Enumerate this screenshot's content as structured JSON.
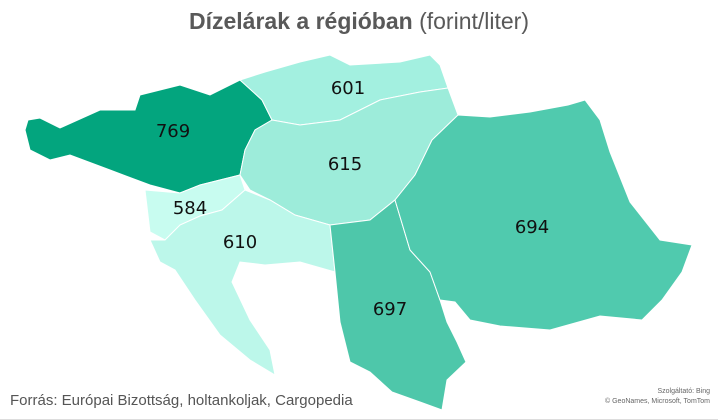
{
  "title": {
    "bold": "Dízelárak a régióban",
    "normal": "(forint/liter)"
  },
  "regions": [
    {
      "value": "769",
      "color": "#03a57e"
    },
    {
      "value": "601",
      "color": "#a3f0e0"
    },
    {
      "value": "615",
      "color": "#9decda"
    },
    {
      "value": "584",
      "color": "#c8fcf0"
    },
    {
      "value": "610",
      "color": "#bcf7ea"
    },
    {
      "value": "697",
      "color": "#4ec7aa"
    },
    {
      "value": "694",
      "color": "#50caae"
    }
  ],
  "source": "Forrás: Európai Bizottság, holtankoljak, Cargopedia",
  "credit": {
    "line1": "Szolgáltató: Bing",
    "line2": "© GeoNames, Microsoft, TomTom"
  }
}
